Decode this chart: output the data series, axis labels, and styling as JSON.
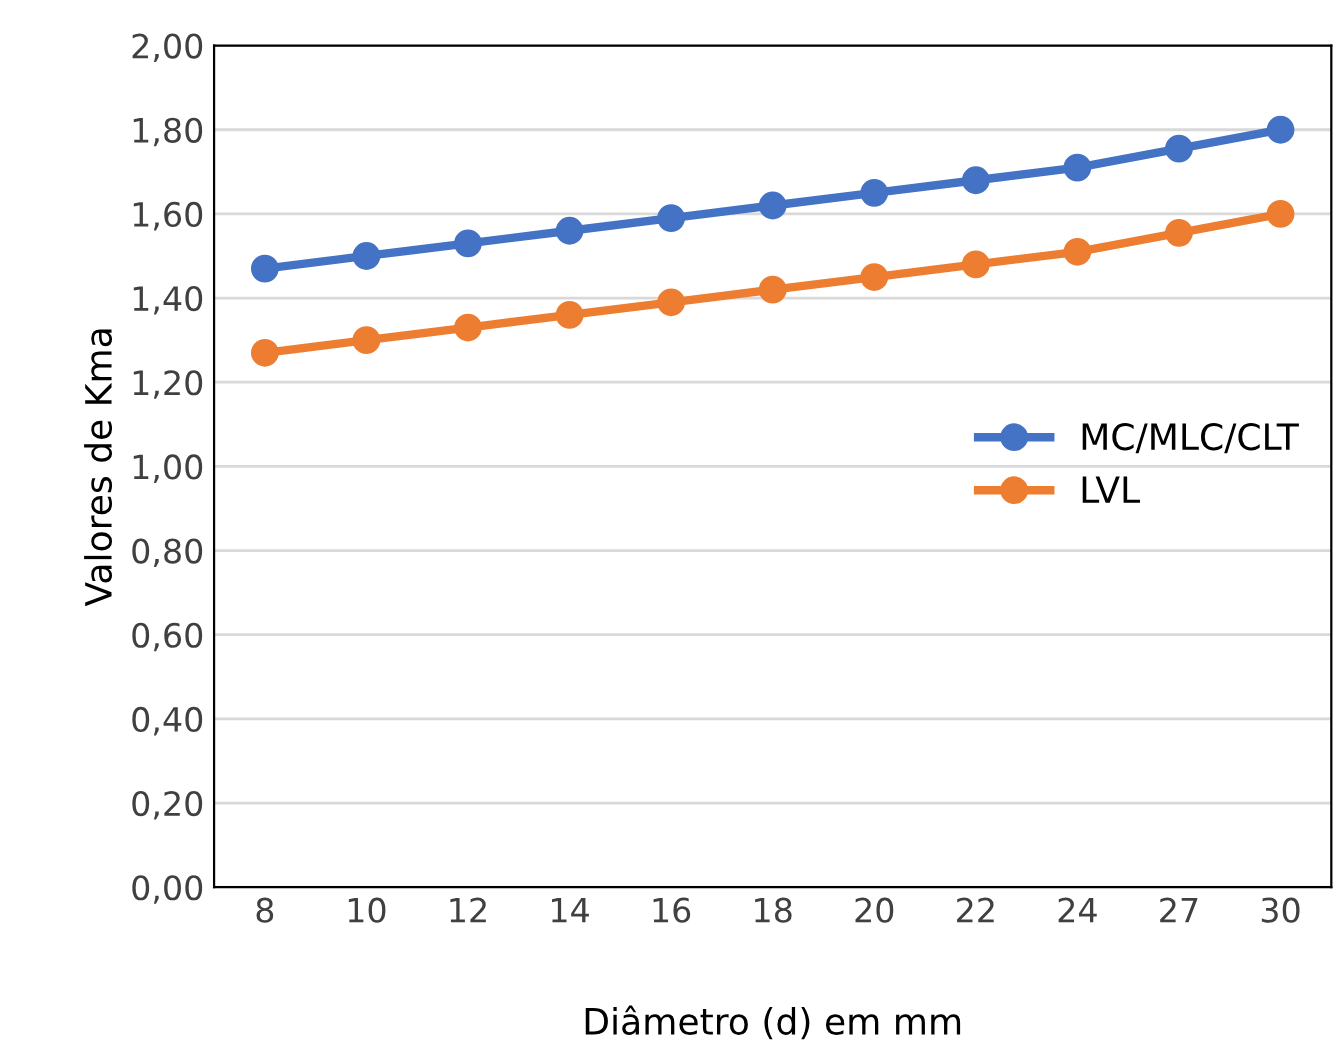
{
  "chart_data": {
    "type": "line",
    "xlabel": "Diâmetro (d) em mm",
    "ylabel": "Valores de Kma",
    "categories": [
      "8",
      "10",
      "12",
      "14",
      "16",
      "18",
      "20",
      "22",
      "24",
      "27",
      "30"
    ],
    "series": [
      {
        "name": "MC/MLC/CLT",
        "color": "#4472c4",
        "values": [
          1.47,
          1.5,
          1.53,
          1.56,
          1.59,
          1.62,
          1.65,
          1.68,
          1.71,
          1.755,
          1.8
        ]
      },
      {
        "name": "LVL",
        "color": "#ed7d31",
        "values": [
          1.27,
          1.3,
          1.33,
          1.36,
          1.39,
          1.42,
          1.45,
          1.48,
          1.51,
          1.555,
          1.6
        ]
      }
    ],
    "ylim": [
      0,
      2
    ],
    "yticks": [
      {
        "value": 0,
        "label": "0,00"
      },
      {
        "value": 0.2,
        "label": "0,20"
      },
      {
        "value": 0.4,
        "label": "0,40"
      },
      {
        "value": 0.6,
        "label": "0,60"
      },
      {
        "value": 0.8,
        "label": "0,80"
      },
      {
        "value": 1.0,
        "label": "1,00"
      },
      {
        "value": 1.2,
        "label": "1,20"
      },
      {
        "value": 1.4,
        "label": "1,40"
      },
      {
        "value": 1.6,
        "label": "1,60"
      },
      {
        "value": 1.8,
        "label": "1,80"
      },
      {
        "value": 2.0,
        "label": "2,00"
      }
    ],
    "grid": "y",
    "legend": "center right",
    "marker": "circle",
    "line_style": "solid"
  }
}
